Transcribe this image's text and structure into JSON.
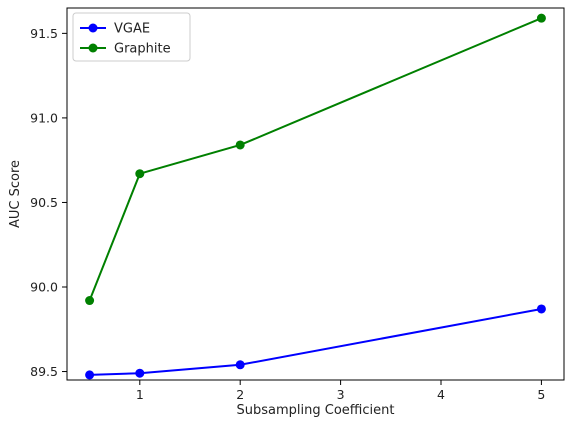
{
  "chart_data": {
    "type": "line",
    "xlabel": "Subsampling Coefficient",
    "ylabel": "AUC Score",
    "xlim": [
      0.275,
      5.225
    ],
    "ylim": [
      89.45,
      91.65
    ],
    "xticks": [
      1,
      2,
      3,
      4,
      5
    ],
    "yticks": [
      89.5,
      90.0,
      90.5,
      91.0,
      91.5
    ],
    "grid": false,
    "legend_position": "top-left",
    "series": [
      {
        "name": "VGAE",
        "color": "#0000ff",
        "marker": "circle",
        "x": [
          0.5,
          1,
          2,
          5
        ],
        "y": [
          89.48,
          89.49,
          89.54,
          89.87
        ]
      },
      {
        "name": "Graphite",
        "color": "#008000",
        "marker": "circle",
        "x": [
          0.5,
          1,
          2,
          5
        ],
        "y": [
          89.92,
          90.67,
          90.84,
          91.59
        ]
      }
    ]
  }
}
